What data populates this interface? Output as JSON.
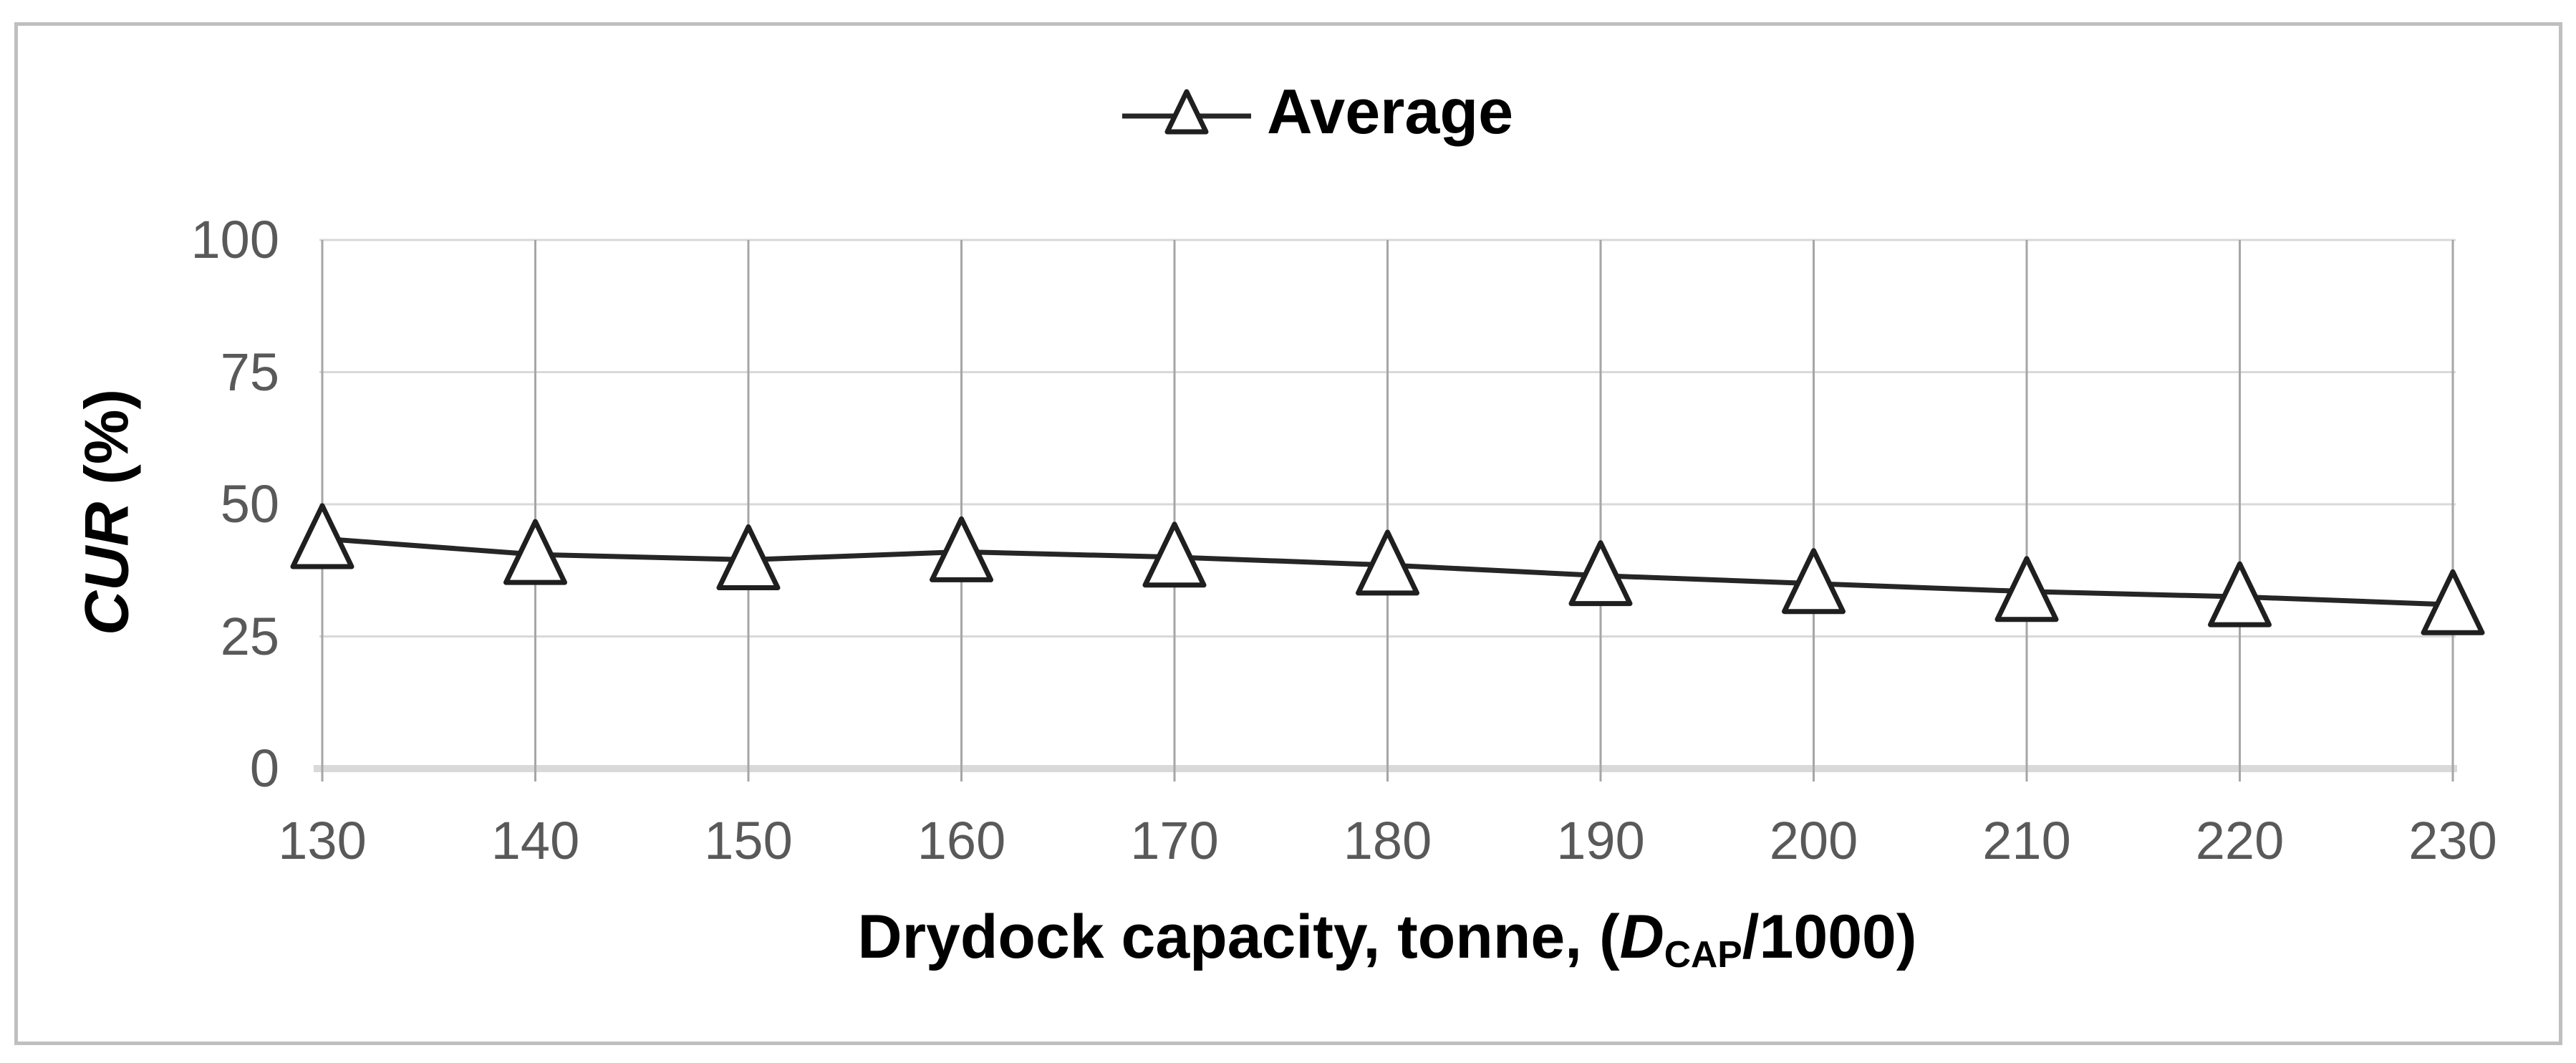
{
  "chart": {
    "legend": {
      "label": "Average"
    },
    "y_axis": {
      "title_var": "CUR",
      "title_rest": " (%)"
    },
    "x_axis": {
      "title_prefix": "Drydock capacity, tonne, (",
      "title_var": "D",
      "title_sub": "CAP",
      "title_suffix": "/1000)"
    }
  },
  "chart_data": {
    "type": "line",
    "title": "",
    "categories": [
      130,
      140,
      150,
      160,
      170,
      180,
      190,
      200,
      210,
      220,
      230
    ],
    "series": [
      {
        "name": "Average",
        "marker": "open-triangle",
        "values": [
          43.5,
          40.5,
          39.5,
          41,
          40,
          38.5,
          36.5,
          35,
          33.5,
          32.5,
          31
        ]
      }
    ],
    "xlabel": "Drydock capacity, tonne, (D_CAP/1000)",
    "ylabel": "CUR (%)",
    "ylim": [
      0,
      100
    ],
    "y_ticks": [
      0,
      25,
      50,
      75,
      100
    ],
    "x_tick_step": 10,
    "grid": true,
    "legend_position": "top-center"
  },
  "colors": {
    "series_line": "#262626",
    "marker_fill": "#ffffff",
    "marker_stroke": "#1f1f1f",
    "grid_vertical": "#a6a6a6",
    "grid_horizontal": "#d9d9d9",
    "axis_line": "#d9d9d9",
    "tick_text": "#595959",
    "title_text": "#000000",
    "border": "#bfbfbf"
  }
}
